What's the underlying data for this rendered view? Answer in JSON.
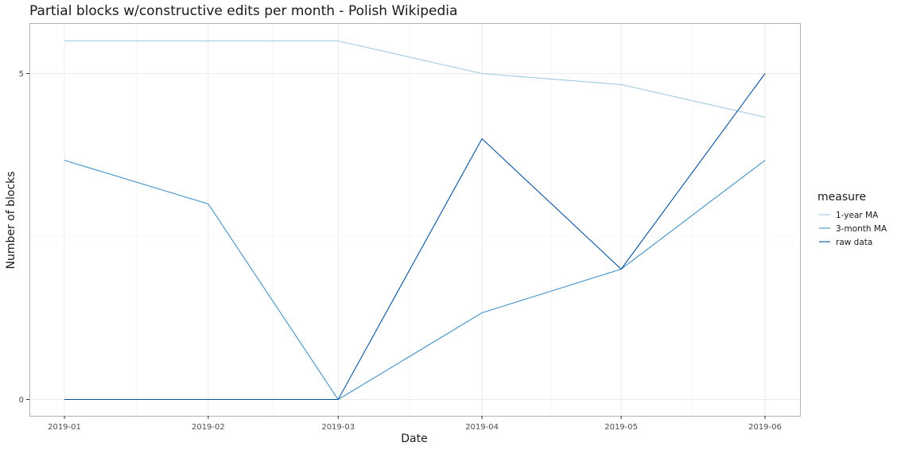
{
  "chart_data": {
    "type": "line",
    "title": "Partial blocks w/constructive edits per month - Polish Wikipedia",
    "xlabel": "Date",
    "ylabel": "Number of blocks",
    "x": [
      "2019-01",
      "2019-02",
      "2019-03",
      "2019-04",
      "2019-05",
      "2019-06"
    ],
    "x_days": [
      0,
      31,
      59,
      90,
      120,
      151
    ],
    "ylim": [
      -0.27,
      5.75
    ],
    "yticks": [
      0,
      5
    ],
    "grid": true,
    "legend_position": "right",
    "legend_title": "measure",
    "series": [
      {
        "name": "1-year MA",
        "color": "#9ecae1",
        "values": [
          5.5,
          5.5,
          5.5,
          5.0,
          4.83,
          4.33
        ]
      },
      {
        "name": "3-month MA",
        "color": "#4292c6",
        "values": [
          3.67,
          3.0,
          0.0,
          1.33,
          2.0,
          3.67
        ]
      },
      {
        "name": "raw data",
        "color": "#08519c",
        "values": [
          0,
          0,
          0,
          4.0,
          2.0,
          5.0
        ]
      }
    ]
  }
}
